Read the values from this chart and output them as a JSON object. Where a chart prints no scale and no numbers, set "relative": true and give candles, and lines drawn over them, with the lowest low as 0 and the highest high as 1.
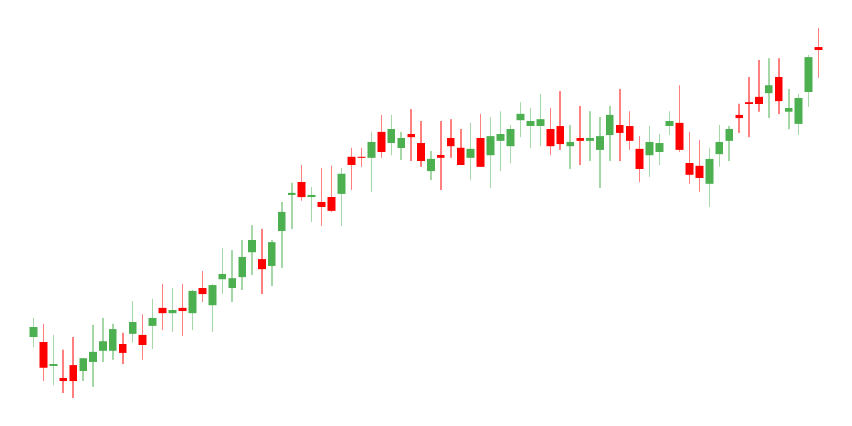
{
  "chart_data": {
    "type": "candlestick",
    "relative": true,
    "categories": [
      null,
      null,
      null,
      null,
      null,
      null,
      null,
      null,
      null,
      null,
      null,
      null,
      null,
      null,
      null,
      null,
      null,
      null,
      null,
      null,
      null,
      null,
      null,
      null,
      null,
      null,
      null,
      null,
      null,
      null,
      null,
      null,
      null,
      null,
      null,
      null,
      null,
      null,
      null,
      null,
      null,
      null,
      null,
      null,
      null,
      null,
      null,
      null,
      null,
      null,
      null,
      null,
      null,
      null,
      null,
      null,
      null,
      null,
      null,
      null,
      null,
      null,
      null,
      null,
      null,
      null,
      null,
      null,
      null,
      null,
      null,
      null,
      null,
      null,
      null,
      null,
      null,
      null,
      null,
      null
    ],
    "ohlc": [
      [
        0.165,
        0.217,
        0.138,
        0.192
      ],
      [
        0.152,
        0.202,
        0.046,
        0.083
      ],
      [
        0.088,
        0.171,
        0.036,
        0.094
      ],
      [
        0.054,
        0.131,
        0.015,
        0.046
      ],
      [
        0.09,
        0.167,
        0,
        0.046
      ],
      [
        0.073,
        0.109,
        0.046,
        0.109
      ],
      [
        0.098,
        0.198,
        0.031,
        0.125
      ],
      [
        0.129,
        0.217,
        0.098,
        0.155
      ],
      [
        0.129,
        0.202,
        0.104,
        0.186
      ],
      [
        0.146,
        0.177,
        0.092,
        0.123
      ],
      [
        0.175,
        0.263,
        0.15,
        0.207
      ],
      [
        0.171,
        0.228,
        0.104,
        0.144
      ],
      [
        0.196,
        0.269,
        0.134,
        0.217
      ],
      [
        0.244,
        0.309,
        0.184,
        0.23
      ],
      [
        0.23,
        0.299,
        0.18,
        0.238
      ],
      [
        0.244,
        0.309,
        0.169,
        0.236
      ],
      [
        0.23,
        0.294,
        0.184,
        0.29
      ],
      [
        0.299,
        0.345,
        0.261,
        0.282
      ],
      [
        0.251,
        0.309,
        0.18,
        0.305
      ],
      [
        0.322,
        0.407,
        0.282,
        0.336
      ],
      [
        0.298,
        0.401,
        0.261,
        0.324
      ],
      [
        0.328,
        0.428,
        0.292,
        0.382
      ],
      [
        0.395,
        0.468,
        0.334,
        0.428
      ],
      [
        0.376,
        0.459,
        0.282,
        0.349
      ],
      [
        0.359,
        0.428,
        0.303,
        0.422
      ],
      [
        0.451,
        0.53,
        0.353,
        0.505
      ],
      [
        0.549,
        0.582,
        0.457,
        0.555
      ],
      [
        0.585,
        0.631,
        0.534,
        0.543
      ],
      [
        0.543,
        0.57,
        0.476,
        0.551
      ],
      [
        0.53,
        0.622,
        0.466,
        0.518
      ],
      [
        0.545,
        0.628,
        0.503,
        0.507
      ],
      [
        0.553,
        0.622,
        0.466,
        0.607
      ],
      [
        0.653,
        0.678,
        0.564,
        0.63
      ],
      [
        0.653,
        0.678,
        0.626,
        0.651
      ],
      [
        0.651,
        0.72,
        0.559,
        0.693
      ],
      [
        0.72,
        0.766,
        0.651,
        0.666
      ],
      [
        0.691,
        0.766,
        0.656,
        0.729
      ],
      [
        0.676,
        0.72,
        0.645,
        0.704
      ],
      [
        0.714,
        0.781,
        0.641,
        0.706
      ],
      [
        0.689,
        0.75,
        0.626,
        0.641
      ],
      [
        0.614,
        0.668,
        0.589,
        0.647
      ],
      [
        0.658,
        0.75,
        0.564,
        0.651
      ],
      [
        0.704,
        0.754,
        0.651,
        0.681
      ],
      [
        0.678,
        0.729,
        0.63,
        0.63
      ],
      [
        0.651,
        0.745,
        0.589,
        0.674
      ],
      [
        0.704,
        0.77,
        0.626,
        0.626
      ],
      [
        0.656,
        0.76,
        0.568,
        0.708
      ],
      [
        0.697,
        0.775,
        0.614,
        0.714
      ],
      [
        0.681,
        0.739,
        0.635,
        0.729
      ],
      [
        0.752,
        0.8,
        0.706,
        0.77
      ],
      [
        0.737,
        0.785,
        0.676,
        0.75
      ],
      [
        0.737,
        0.822,
        0.681,
        0.754
      ],
      [
        0.729,
        0.785,
        0.656,
        0.681
      ],
      [
        0.735,
        0.831,
        0.672,
        0.687
      ],
      [
        0.681,
        0.739,
        0.62,
        0.693
      ],
      [
        0.704,
        0.791,
        0.63,
        0.697
      ],
      [
        0.697,
        0.775,
        0.641,
        0.704
      ],
      [
        0.672,
        0.76,
        0.568,
        0.708
      ],
      [
        0.712,
        0.791,
        0.641,
        0.766
      ],
      [
        0.739,
        0.837,
        0.641,
        0.718
      ],
      [
        0.735,
        0.775,
        0.672,
        0.697
      ],
      [
        0.674,
        0.708,
        0.583,
        0.62
      ],
      [
        0.656,
        0.735,
        0.599,
        0.693
      ],
      [
        0.666,
        0.714,
        0.63,
        0.689
      ],
      [
        0.737,
        0.775,
        0.712,
        0.75
      ],
      [
        0.745,
        0.846,
        0.666,
        0.672
      ],
      [
        0.637,
        0.72,
        0.58,
        0.605
      ],
      [
        0.628,
        0.699,
        0.559,
        0.595
      ],
      [
        0.58,
        0.678,
        0.518,
        0.647
      ],
      [
        0.66,
        0.739,
        0.626,
        0.693
      ],
      [
        0.697,
        0.735,
        0.641,
        0.729
      ],
      [
        0.766,
        0.797,
        0.718,
        0.758
      ],
      [
        0.8,
        0.868,
        0.706,
        0.795
      ],
      [
        0.816,
        0.914,
        0.774,
        0.795
      ],
      [
        0.825,
        0.919,
        0.758,
        0.846
      ],
      [
        0.868,
        0.919,
        0.768,
        0.804
      ],
      [
        0.774,
        0.837,
        0.727,
        0.785
      ],
      [
        0.743,
        0.822,
        0.712,
        0.812
      ],
      [
        0.829,
        0.929,
        0.789,
        0.923
      ],
      [
        0.95,
        1,
        0.866,
        0.942
      ]
    ],
    "colors": [
      "#4caf50",
      "#ff0000",
      "#4caf50",
      "#ff0000",
      "#ff0000",
      "#4caf50",
      "#4caf50",
      "#4caf50",
      "#4caf50",
      "#ff0000",
      "#4caf50",
      "#ff0000",
      "#4caf50",
      "#ff0000",
      "#4caf50",
      "#ff0000",
      "#4caf50",
      "#ff0000",
      "#4caf50",
      "#4caf50",
      "#4caf50",
      "#4caf50",
      "#4caf50",
      "#ff0000",
      "#4caf50",
      "#4caf50",
      "#4caf50",
      "#ff0000",
      "#4caf50",
      "#ff0000",
      "#ff0000",
      "#4caf50",
      "#ff0000",
      "#ff0000",
      "#4caf50",
      "#ff0000",
      "#4caf50",
      "#4caf50",
      "#ff0000",
      "#ff0000",
      "#4caf50",
      "#ff0000",
      "#ff0000",
      "#ff0000",
      "#4caf50",
      "#ff0000",
      "#4caf50",
      "#4caf50",
      "#4caf50",
      "#4caf50",
      "#4caf50",
      "#4caf50",
      "#ff0000",
      "#ff0000",
      "#4caf50",
      "#ff0000",
      "#4caf50",
      "#4caf50",
      "#4caf50",
      "#ff0000",
      "#ff0000",
      "#ff0000",
      "#4caf50",
      "#4caf50",
      "#4caf50",
      "#ff0000",
      "#ff0000",
      "#ff0000",
      "#4caf50",
      "#4caf50",
      "#4caf50",
      "#ff0000",
      "#ff0000",
      "#ff0000",
      "#4caf50",
      "#ff0000",
      "#4caf50",
      "#4caf50",
      "#4caf50",
      "#ff0000"
    ]
  }
}
